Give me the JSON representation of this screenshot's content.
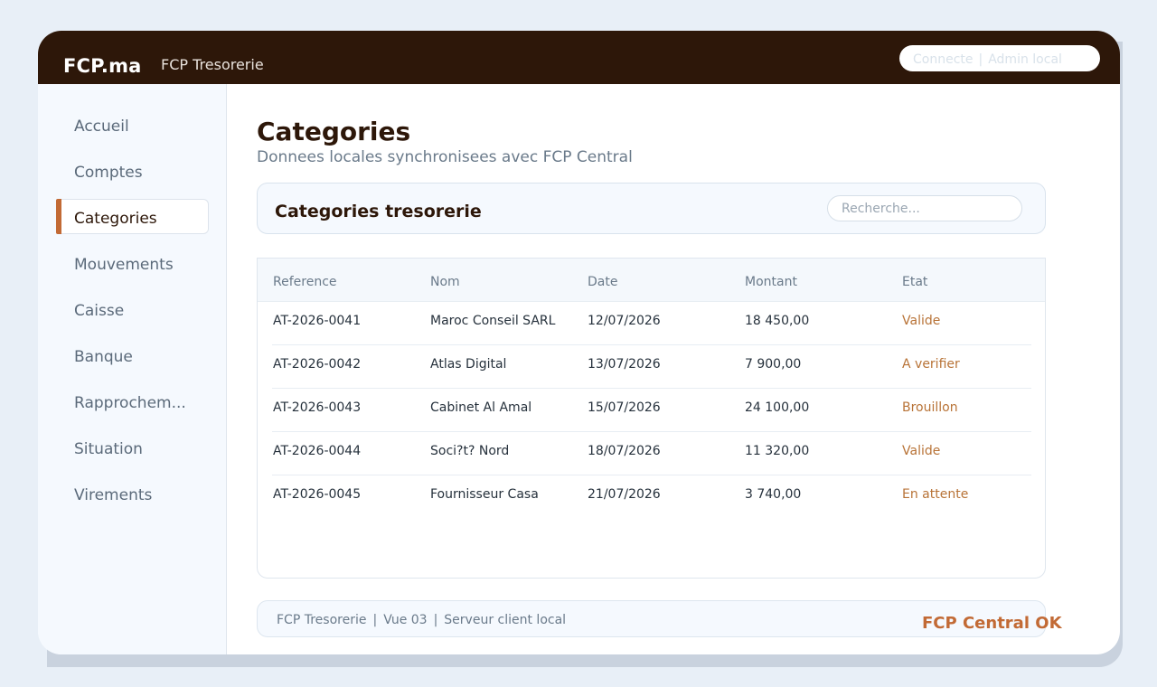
{
  "header": {
    "brand": "FCP.ma",
    "app_title": "FCP Tresorerie",
    "status": {
      "connection": "Connecte",
      "user": "Admin local"
    }
  },
  "sidebar": {
    "items": [
      {
        "label": "Accueil",
        "active": false
      },
      {
        "label": "Comptes",
        "active": false
      },
      {
        "label": "Categories",
        "active": true
      },
      {
        "label": "Mouvements",
        "active": false
      },
      {
        "label": "Caisse",
        "active": false
      },
      {
        "label": "Banque",
        "active": false
      },
      {
        "label": "Rapprochem...",
        "active": false
      },
      {
        "label": "Situation",
        "active": false
      },
      {
        "label": "Virements",
        "active": false
      }
    ]
  },
  "main": {
    "title": "Categories",
    "subtitle": "Donnees locales synchronisees avec FCP Central",
    "panel_title": "Categories tresorerie",
    "search_placeholder": "Recherche..."
  },
  "table": {
    "columns": [
      "Reference",
      "Nom",
      "Date",
      "Montant",
      "Etat"
    ],
    "rows": [
      [
        "AT-2026-0041",
        "Maroc Conseil SARL",
        "12/07/2026",
        "18 450,00",
        "Valide"
      ],
      [
        "AT-2026-0042",
        "Atlas Digital",
        "13/07/2026",
        "7 900,00",
        "A verifier"
      ],
      [
        "AT-2026-0043",
        "Cabinet Al Amal",
        "15/07/2026",
        "24 100,00",
        "Brouillon"
      ],
      [
        "AT-2026-0044",
        "Soci?t? Nord",
        "18/07/2026",
        "11 320,00",
        "Valide"
      ],
      [
        "AT-2026-0045",
        "Fournisseur Casa",
        "21/07/2026",
        "3 740,00",
        "En attente"
      ]
    ]
  },
  "footer": {
    "app": "FCP Tresorerie",
    "view": "Vue 03",
    "server": "Serveur client local",
    "central_status": "FCP Central OK"
  },
  "colors": {
    "topbar": "#2d1709",
    "accent": "#c26a35",
    "status_text": "#b87337"
  }
}
